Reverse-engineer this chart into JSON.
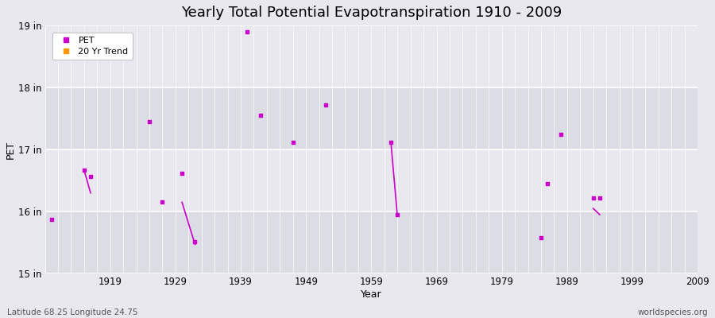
{
  "title": "Yearly Total Potential Evapotranspiration 1910 - 2009",
  "xlabel": "Year",
  "ylabel": "PET",
  "xlim": [
    1909,
    2009
  ],
  "ylim": [
    15,
    19
  ],
  "yticks": [
    15,
    16,
    17,
    18,
    19
  ],
  "ytick_labels": [
    "15 in",
    "16 in",
    "17 in",
    "18 in",
    "19 in"
  ],
  "xticks": [
    1909,
    1919,
    1929,
    1939,
    1949,
    1959,
    1969,
    1979,
    1989,
    1999,
    2009
  ],
  "xtick_labels": [
    "",
    "1919",
    "1929",
    "1939",
    "1949",
    "1959",
    "1969",
    "1979",
    "1989",
    "1999",
    "2009"
  ],
  "fig_bg_color": "#e8e8ee",
  "plot_bg_color": "#e8e8ee",
  "hband_color": "#d8d8e0",
  "grid_v_color": "#ffffff",
  "pet_color": "#cc00cc",
  "trend_color": "#cc00cc",
  "pet_points": [
    [
      1910,
      15.87
    ],
    [
      1915,
      16.67
    ],
    [
      1916,
      16.57
    ],
    [
      1925,
      17.45
    ],
    [
      1927,
      16.15
    ],
    [
      1930,
      16.62
    ],
    [
      1932,
      15.52
    ],
    [
      1940,
      18.9
    ],
    [
      1942,
      17.55
    ],
    [
      1947,
      17.12
    ],
    [
      1952,
      17.72
    ],
    [
      1962,
      17.12
    ],
    [
      1963,
      15.95
    ],
    [
      1985,
      15.58
    ],
    [
      1986,
      16.45
    ],
    [
      1988,
      17.25
    ],
    [
      1993,
      16.22
    ],
    [
      1994,
      16.22
    ]
  ],
  "trend_lines": [
    [
      [
        1915,
        16.67
      ],
      [
        1916,
        16.3
      ]
    ],
    [
      [
        1930,
        16.15
      ],
      [
        1932,
        15.47
      ]
    ],
    [
      [
        1962,
        17.12
      ],
      [
        1963,
        15.93
      ]
    ],
    [
      [
        1993,
        16.05
      ],
      [
        1994,
        15.95
      ]
    ]
  ],
  "footnote_left": "Latitude 68.25 Longitude 24.75",
  "footnote_right": "worldspecies.org",
  "title_fontsize": 13,
  "label_fontsize": 9,
  "tick_fontsize": 8.5
}
